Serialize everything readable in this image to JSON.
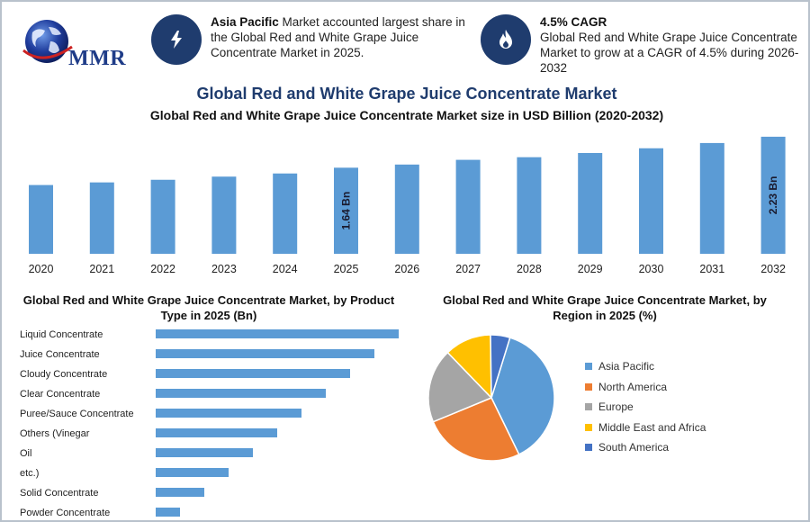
{
  "logo": {
    "text": "MMR"
  },
  "stats": [
    {
      "icon": "lightning-icon",
      "bold": "Asia Pacific",
      "text": " Market accounted largest share in the Global Red and White Grape Juice Concentrate Market in 2025."
    },
    {
      "icon": "fire-drop-icon",
      "bold": "4.5% CAGR",
      "text": "Global Red and White Grape Juice Concentrate Market to grow at a CAGR of 4.5% during 2026-2032"
    }
  ],
  "header": {
    "title": "Global Red and White Grape Juice Concentrate Market",
    "subtitle": "Global Red and White Grape Juice Concentrate Market size in USD Billion (2020-2032)"
  },
  "chart_data": [
    {
      "type": "bar",
      "categories": [
        "2020",
        "2021",
        "2022",
        "2023",
        "2024",
        "2025",
        "2026",
        "2027",
        "2028",
        "2029",
        "2030",
        "2031",
        "2032"
      ],
      "values": [
        1.31,
        1.36,
        1.41,
        1.47,
        1.53,
        1.64,
        1.7,
        1.79,
        1.84,
        1.92,
        2.01,
        2.11,
        2.23
      ],
      "data_labels": {
        "2025": "1.64 Bn",
        "2032": "2.23 Bn"
      },
      "ylim": [
        0,
        2.4
      ],
      "color": "#5b9bd5",
      "grid": false
    },
    {
      "type": "bar",
      "orientation": "horizontal",
      "title": "Global Red and White Grape Juice Concentrate Market, by Product Type in 2025 (Bn)",
      "categories": [
        "Liquid Concentrate",
        "Juice Concentrate",
        "Cloudy Concentrate",
        "Clear Concentrate",
        "Puree/Sauce Concentrate",
        "Others (Vinegar",
        "Oil",
        "etc.)",
        "Solid Concentrate",
        "Powder Concentrate"
      ],
      "values": [
        10,
        9,
        8,
        7,
        6,
        5,
        4,
        3,
        2,
        1
      ],
      "xlim": [
        0,
        10
      ],
      "color": "#5b9bd5",
      "grid": false
    },
    {
      "type": "pie",
      "title": "Global Red and White Grape Juice Concentrate Market, by Region in 2025 (%)",
      "labels": [
        "Asia Pacific",
        "North America",
        "Europe",
        "Middle East and Africa",
        "South America"
      ],
      "values": [
        38,
        26,
        19,
        12,
        5
      ],
      "colors": [
        "#5b9bd5",
        "#ed7d31",
        "#a5a5a5",
        "#ffc000",
        "#4472c4"
      ],
      "legend": "right"
    }
  ]
}
